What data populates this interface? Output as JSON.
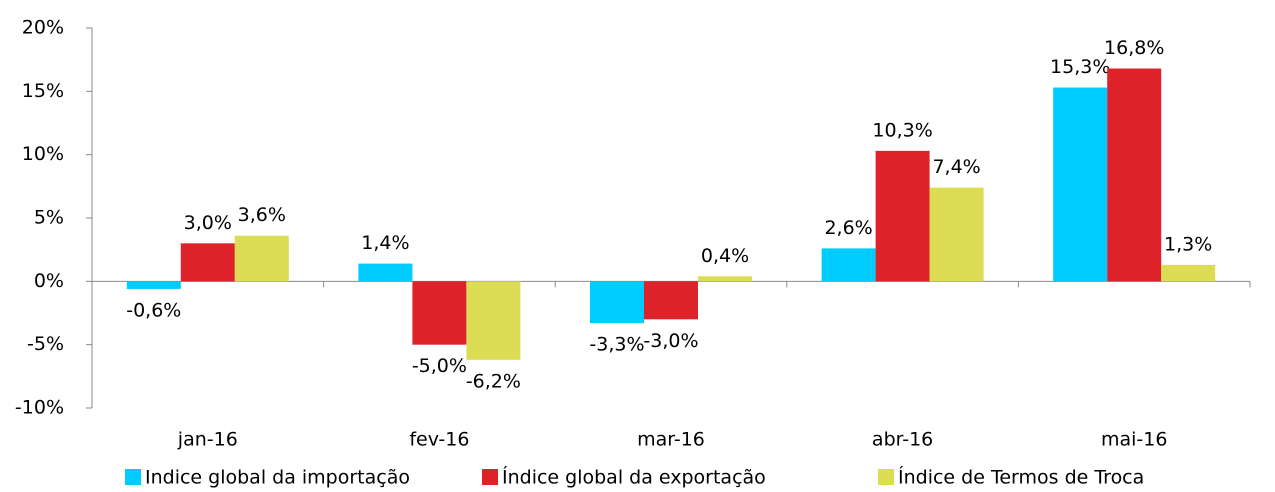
{
  "chart_data": {
    "type": "bar",
    "categories": [
      "jan-16",
      "fev-16",
      "mar-16",
      "abr-16",
      "mai-16"
    ],
    "series": [
      {
        "name": "Indice global da importação",
        "color": "#00ccff",
        "values": [
          -0.6,
          1.4,
          -3.3,
          2.6,
          15.3
        ],
        "value_labels": [
          "-0,6%",
          "1,4%",
          "-3,3%",
          "2,6%",
          "15,3%"
        ]
      },
      {
        "name": "Índice global da exportação",
        "color": "#dd2229",
        "values": [
          3.0,
          -5.0,
          -3.0,
          10.3,
          16.8
        ],
        "value_labels": [
          "3,0%",
          "-5,0%",
          "-3,0%",
          "10,3%",
          "16,8%"
        ]
      },
      {
        "name": "Índice de Termos de Troca",
        "color": "#dddd55",
        "values": [
          3.6,
          -6.2,
          0.4,
          7.4,
          1.3
        ],
        "value_labels": [
          "3,6%",
          "-6,2%",
          "0,4%",
          "7,4%",
          "1,3%"
        ]
      }
    ],
    "ylim": [
      -10,
      20
    ],
    "yticks": [
      {
        "value": -10,
        "label": "-10%"
      },
      {
        "value": -5,
        "label": "-5%"
      },
      {
        "value": 0,
        "label": "0%"
      },
      {
        "value": 5,
        "label": "5%"
      },
      {
        "value": 10,
        "label": "10%"
      },
      {
        "value": 15,
        "label": "15%"
      },
      {
        "value": 20,
        "label": "20%"
      }
    ],
    "legend": "bottom",
    "grid": false
  }
}
